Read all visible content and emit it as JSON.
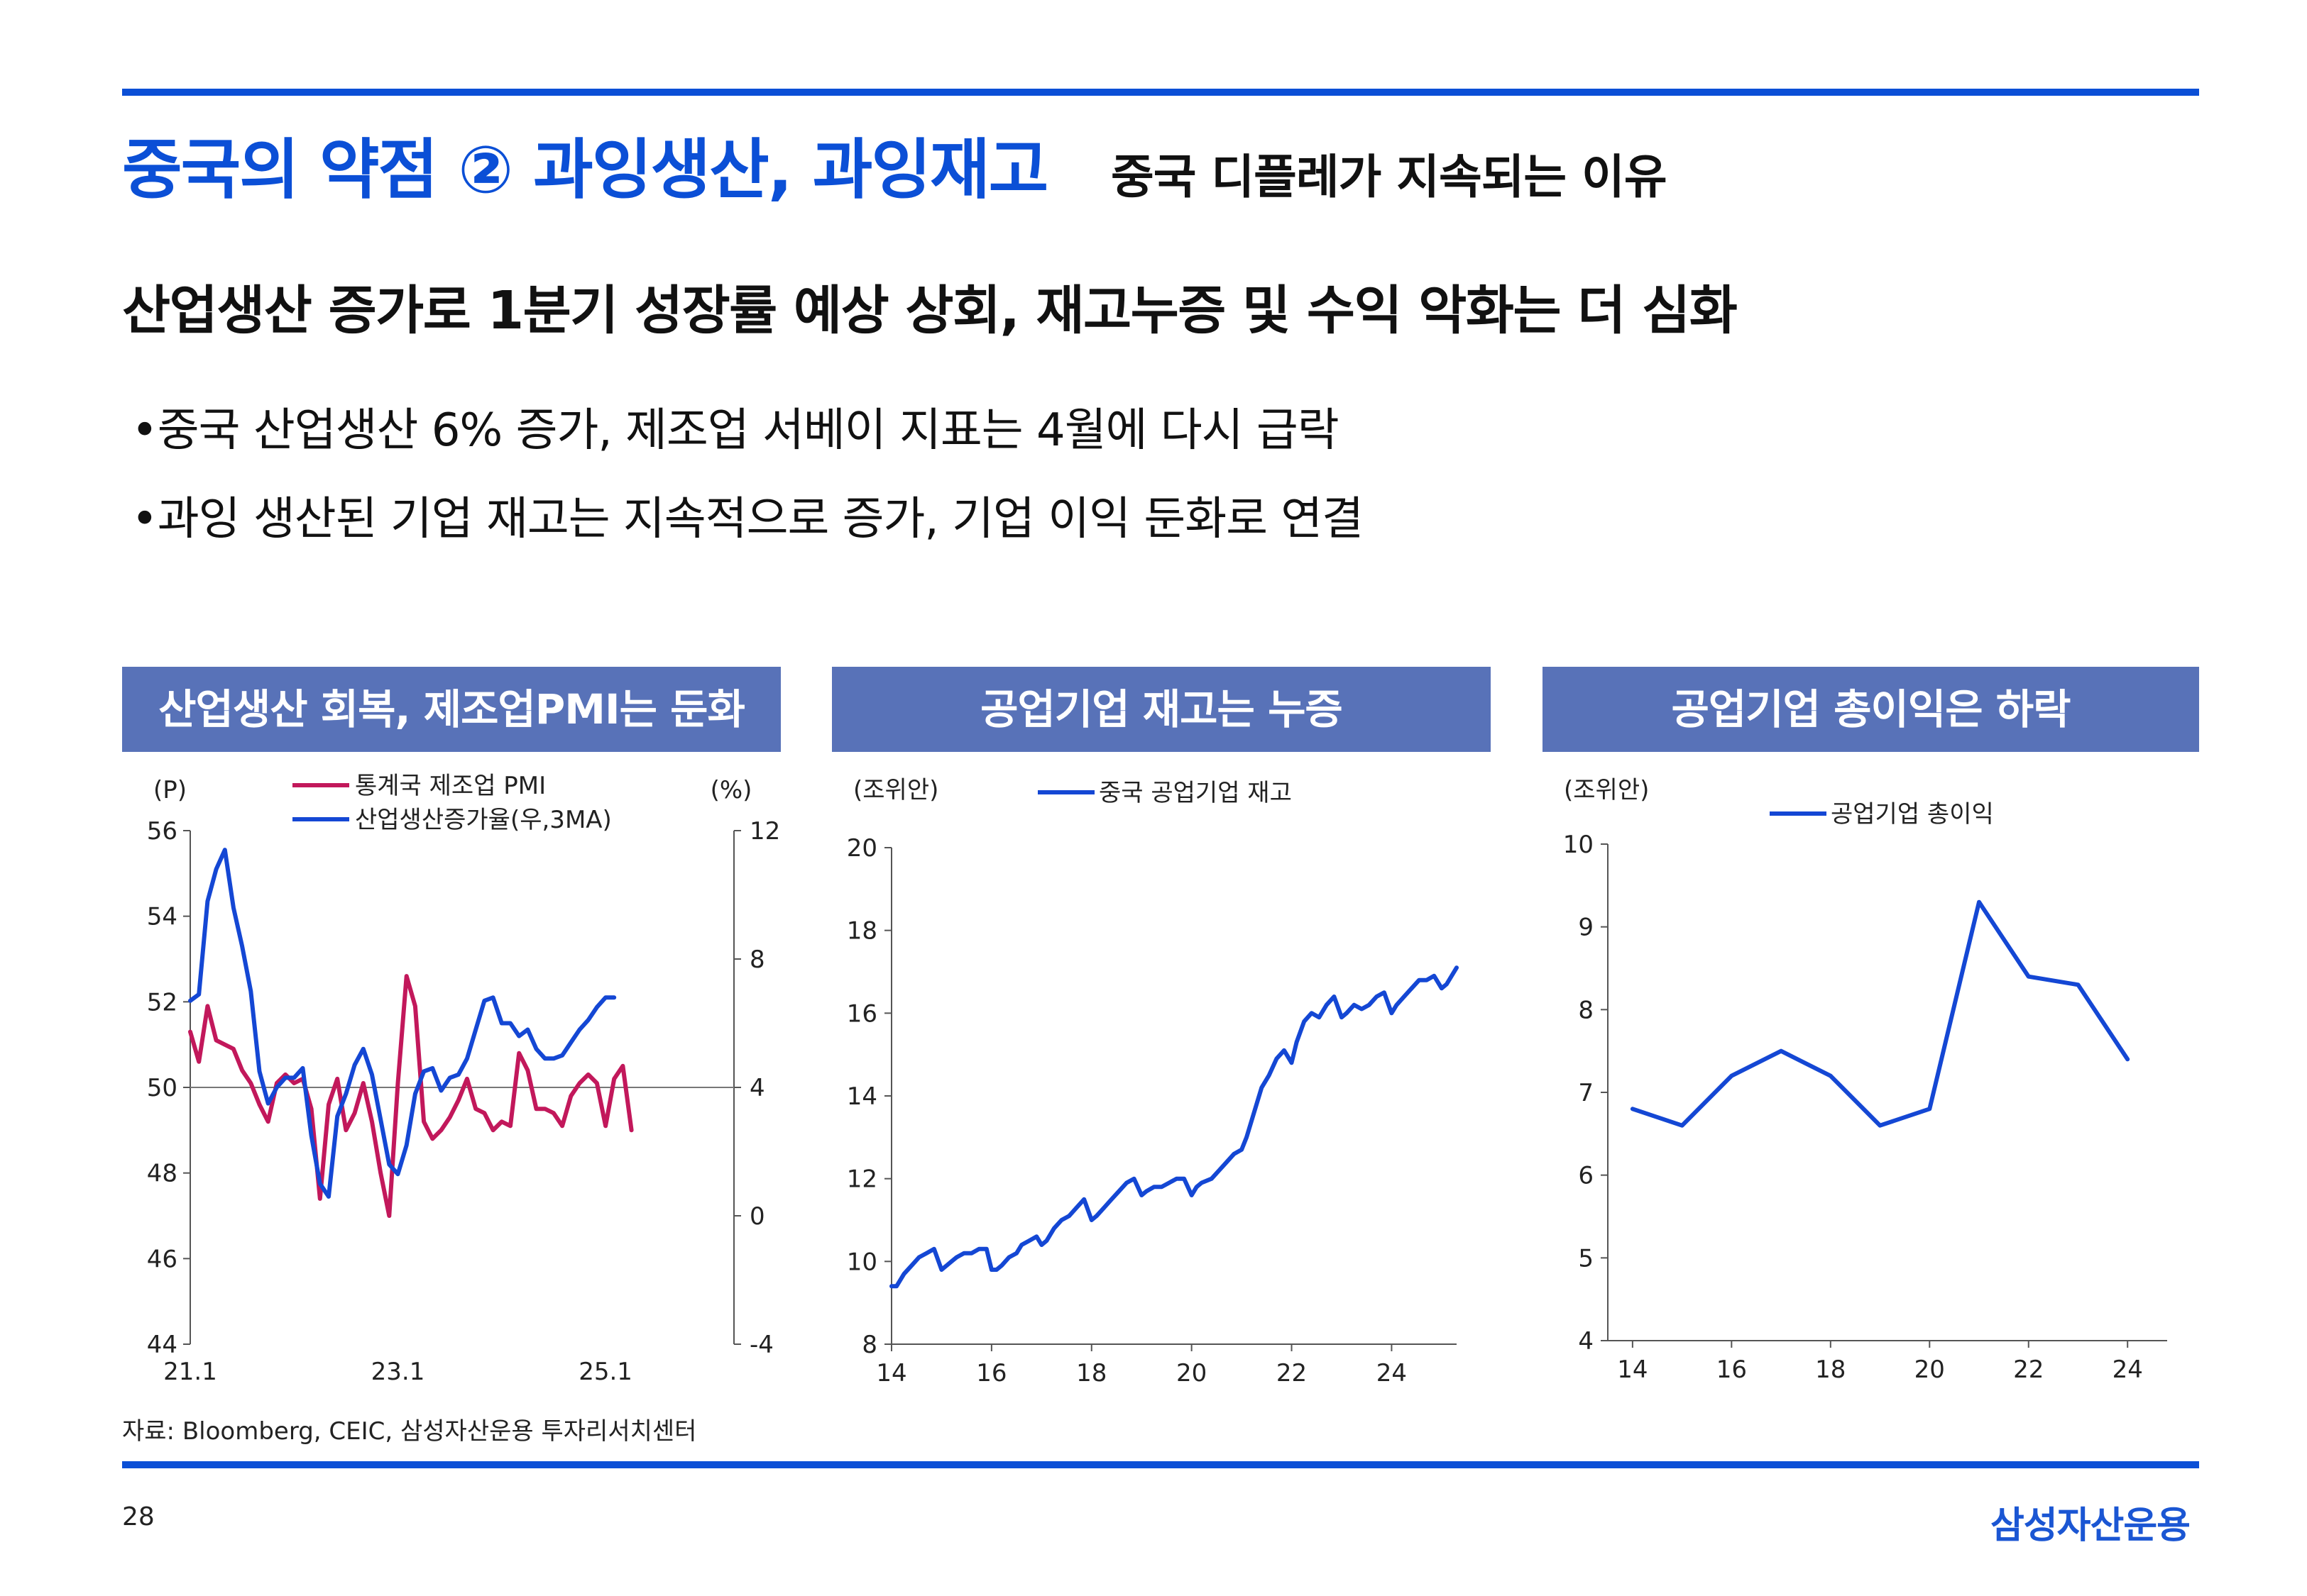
{
  "header": {
    "title": "중국의 약점 ② 과잉생산, 과잉재고",
    "subtitle": "중국 디플레가 지속되는 이유"
  },
  "headline": "산업생산 증가로 1분기 성장률 예상 상회, 재고누증 및 수익 악화는 더 심화",
  "bullets": [
    "•중국 산업생산 6% 증가, 제조업 서베이 지표는 4월에 다시 급락",
    "•과잉 생산된 기업 재고는 지속적으로 증가, 기업 이익 둔화로 연결"
  ],
  "colors": {
    "accent": "#0b4fd6",
    "panel_header": "#5872b8",
    "series_blue": "#1447d4",
    "series_red": "#c2185b"
  },
  "chart_data": [
    {
      "type": "line",
      "title": "산업생산 회복, 제조업PMI는 둔화",
      "left_unit": "(P)",
      "right_unit": "(%)",
      "ylim_left": [
        44,
        56
      ],
      "ylim_right": [
        -4,
        12
      ],
      "left_ticks": [
        "44",
        "46",
        "48",
        "50",
        "52",
        "54",
        "56"
      ],
      "right_ticks": [
        "-4",
        "0",
        "4",
        "8",
        "12"
      ],
      "x_tick_labels": [
        "21.1",
        "23.1",
        "25.1"
      ],
      "reference_line_left": 50,
      "series": [
        {
          "name": "통계국 제조업 PMI",
          "axis": "left",
          "color": "#c2185b",
          "start": "2021-01",
          "values": [
            51.3,
            50.6,
            51.9,
            51.1,
            51.0,
            50.9,
            50.4,
            50.1,
            49.6,
            49.2,
            50.1,
            50.3,
            50.1,
            50.2,
            49.5,
            47.4,
            49.6,
            50.2,
            49.0,
            49.4,
            50.1,
            49.2,
            48.0,
            47.0,
            50.1,
            52.6,
            51.9,
            49.2,
            48.8,
            49.0,
            49.3,
            49.7,
            50.2,
            49.5,
            49.4,
            49.0,
            49.2,
            49.1,
            50.8,
            50.4,
            49.5,
            49.5,
            49.4,
            49.1,
            49.8,
            50.1,
            50.3,
            50.1,
            49.1,
            50.2,
            50.5,
            49.0
          ]
        },
        {
          "name": "산업생산증가율(우,3MA)",
          "axis": "right",
          "color": "#1447d4",
          "start": "2021-01",
          "values": [
            6.7,
            6.9,
            9.8,
            10.8,
            11.4,
            9.6,
            8.4,
            7.0,
            4.5,
            3.5,
            4.0,
            4.3,
            4.3,
            4.6,
            2.5,
            1.0,
            0.6,
            3.1,
            3.8,
            4.7,
            5.2,
            4.4,
            3.0,
            1.6,
            1.3,
            2.2,
            3.8,
            4.5,
            4.6,
            3.9,
            4.3,
            4.4,
            4.9,
            5.8,
            6.7,
            6.8,
            6.0,
            6.0,
            5.6,
            5.8,
            5.2,
            4.9,
            4.9,
            5.0,
            5.4,
            5.8,
            6.1,
            6.5,
            6.8,
            6.8
          ]
        }
      ]
    },
    {
      "type": "line",
      "title": "공업기업 재고는 누증",
      "unit": "(조위안)",
      "ylim": [
        8,
        20
      ],
      "y_ticks": [
        "8",
        "10",
        "12",
        "14",
        "16",
        "18",
        "20"
      ],
      "xlim": [
        2014,
        2025.3
      ],
      "x_ticks": [
        "14",
        "16",
        "18",
        "20",
        "22",
        "24"
      ],
      "series": [
        {
          "name": "중국 공업기업 재고",
          "color": "#1447d4",
          "x": [
            2014.0,
            2014.1,
            2014.25,
            2014.4,
            2014.55,
            2014.7,
            2014.85,
            2015.0,
            2015.1,
            2015.2,
            2015.3,
            2015.45,
            2015.6,
            2015.75,
            2015.9,
            2016.0,
            2016.1,
            2016.2,
            2016.35,
            2016.5,
            2016.6,
            2016.75,
            2016.9,
            2017.0,
            2017.1,
            2017.25,
            2017.4,
            2017.55,
            2017.7,
            2017.85,
            2018.0,
            2018.1,
            2018.25,
            2018.4,
            2018.55,
            2018.7,
            2018.85,
            2019.0,
            2019.1,
            2019.25,
            2019.4,
            2019.55,
            2019.7,
            2019.85,
            2020.0,
            2020.1,
            2020.2,
            2020.4,
            2020.55,
            2020.7,
            2020.85,
            2021.0,
            2021.1,
            2021.25,
            2021.4,
            2021.55,
            2021.7,
            2021.85,
            2022.0,
            2022.1,
            2022.25,
            2022.4,
            2022.55,
            2022.7,
            2022.85,
            2023.0,
            2023.1,
            2023.25,
            2023.4,
            2023.55,
            2023.7,
            2023.85,
            2024.0,
            2024.1,
            2024.25,
            2024.4,
            2024.55,
            2024.7,
            2024.85,
            2025.0,
            2025.1,
            2025.3
          ],
          "values": [
            9.4,
            9.4,
            9.7,
            9.9,
            10.1,
            10.2,
            10.3,
            9.8,
            9.9,
            10.0,
            10.1,
            10.2,
            10.2,
            10.3,
            10.3,
            9.8,
            9.8,
            9.9,
            10.1,
            10.2,
            10.4,
            10.5,
            10.6,
            10.4,
            10.5,
            10.8,
            11.0,
            11.1,
            11.3,
            11.5,
            11.0,
            11.1,
            11.3,
            11.5,
            11.7,
            11.9,
            12.0,
            11.6,
            11.7,
            11.8,
            11.8,
            11.9,
            12.0,
            12.0,
            11.6,
            11.8,
            11.9,
            12.0,
            12.2,
            12.4,
            12.6,
            12.7,
            13.0,
            13.6,
            14.2,
            14.5,
            14.9,
            15.1,
            14.8,
            15.3,
            15.8,
            16.0,
            15.9,
            16.2,
            16.4,
            15.9,
            16.0,
            16.2,
            16.1,
            16.2,
            16.4,
            16.5,
            16.0,
            16.2,
            16.4,
            16.6,
            16.8,
            16.8,
            16.9,
            16.6,
            16.7,
            17.1
          ]
        }
      ]
    },
    {
      "type": "line",
      "title": "공업기업 총이익은 하락",
      "unit": "(조위안)",
      "ylim": [
        4,
        10
      ],
      "y_ticks": [
        "4",
        "5",
        "6",
        "7",
        "8",
        "9",
        "10"
      ],
      "xlim": [
        2013.5,
        2024.8
      ],
      "x_ticks": [
        "14",
        "16",
        "18",
        "20",
        "22",
        "24"
      ],
      "series": [
        {
          "name": "공업기업 총이익",
          "color": "#1447d4",
          "x": [
            2014,
            2015,
            2016,
            2017,
            2018,
            2019,
            2020,
            2021,
            2022,
            2023,
            2024
          ],
          "values": [
            6.8,
            6.6,
            7.2,
            7.5,
            7.2,
            6.6,
            6.8,
            9.3,
            8.4,
            8.3,
            7.4
          ]
        }
      ]
    }
  ],
  "footer": {
    "source": "자료: Bloomberg, CEIC, 삼성자산운용 투자리서치센터",
    "page_number": "28",
    "brand": "삼성자산운용"
  }
}
